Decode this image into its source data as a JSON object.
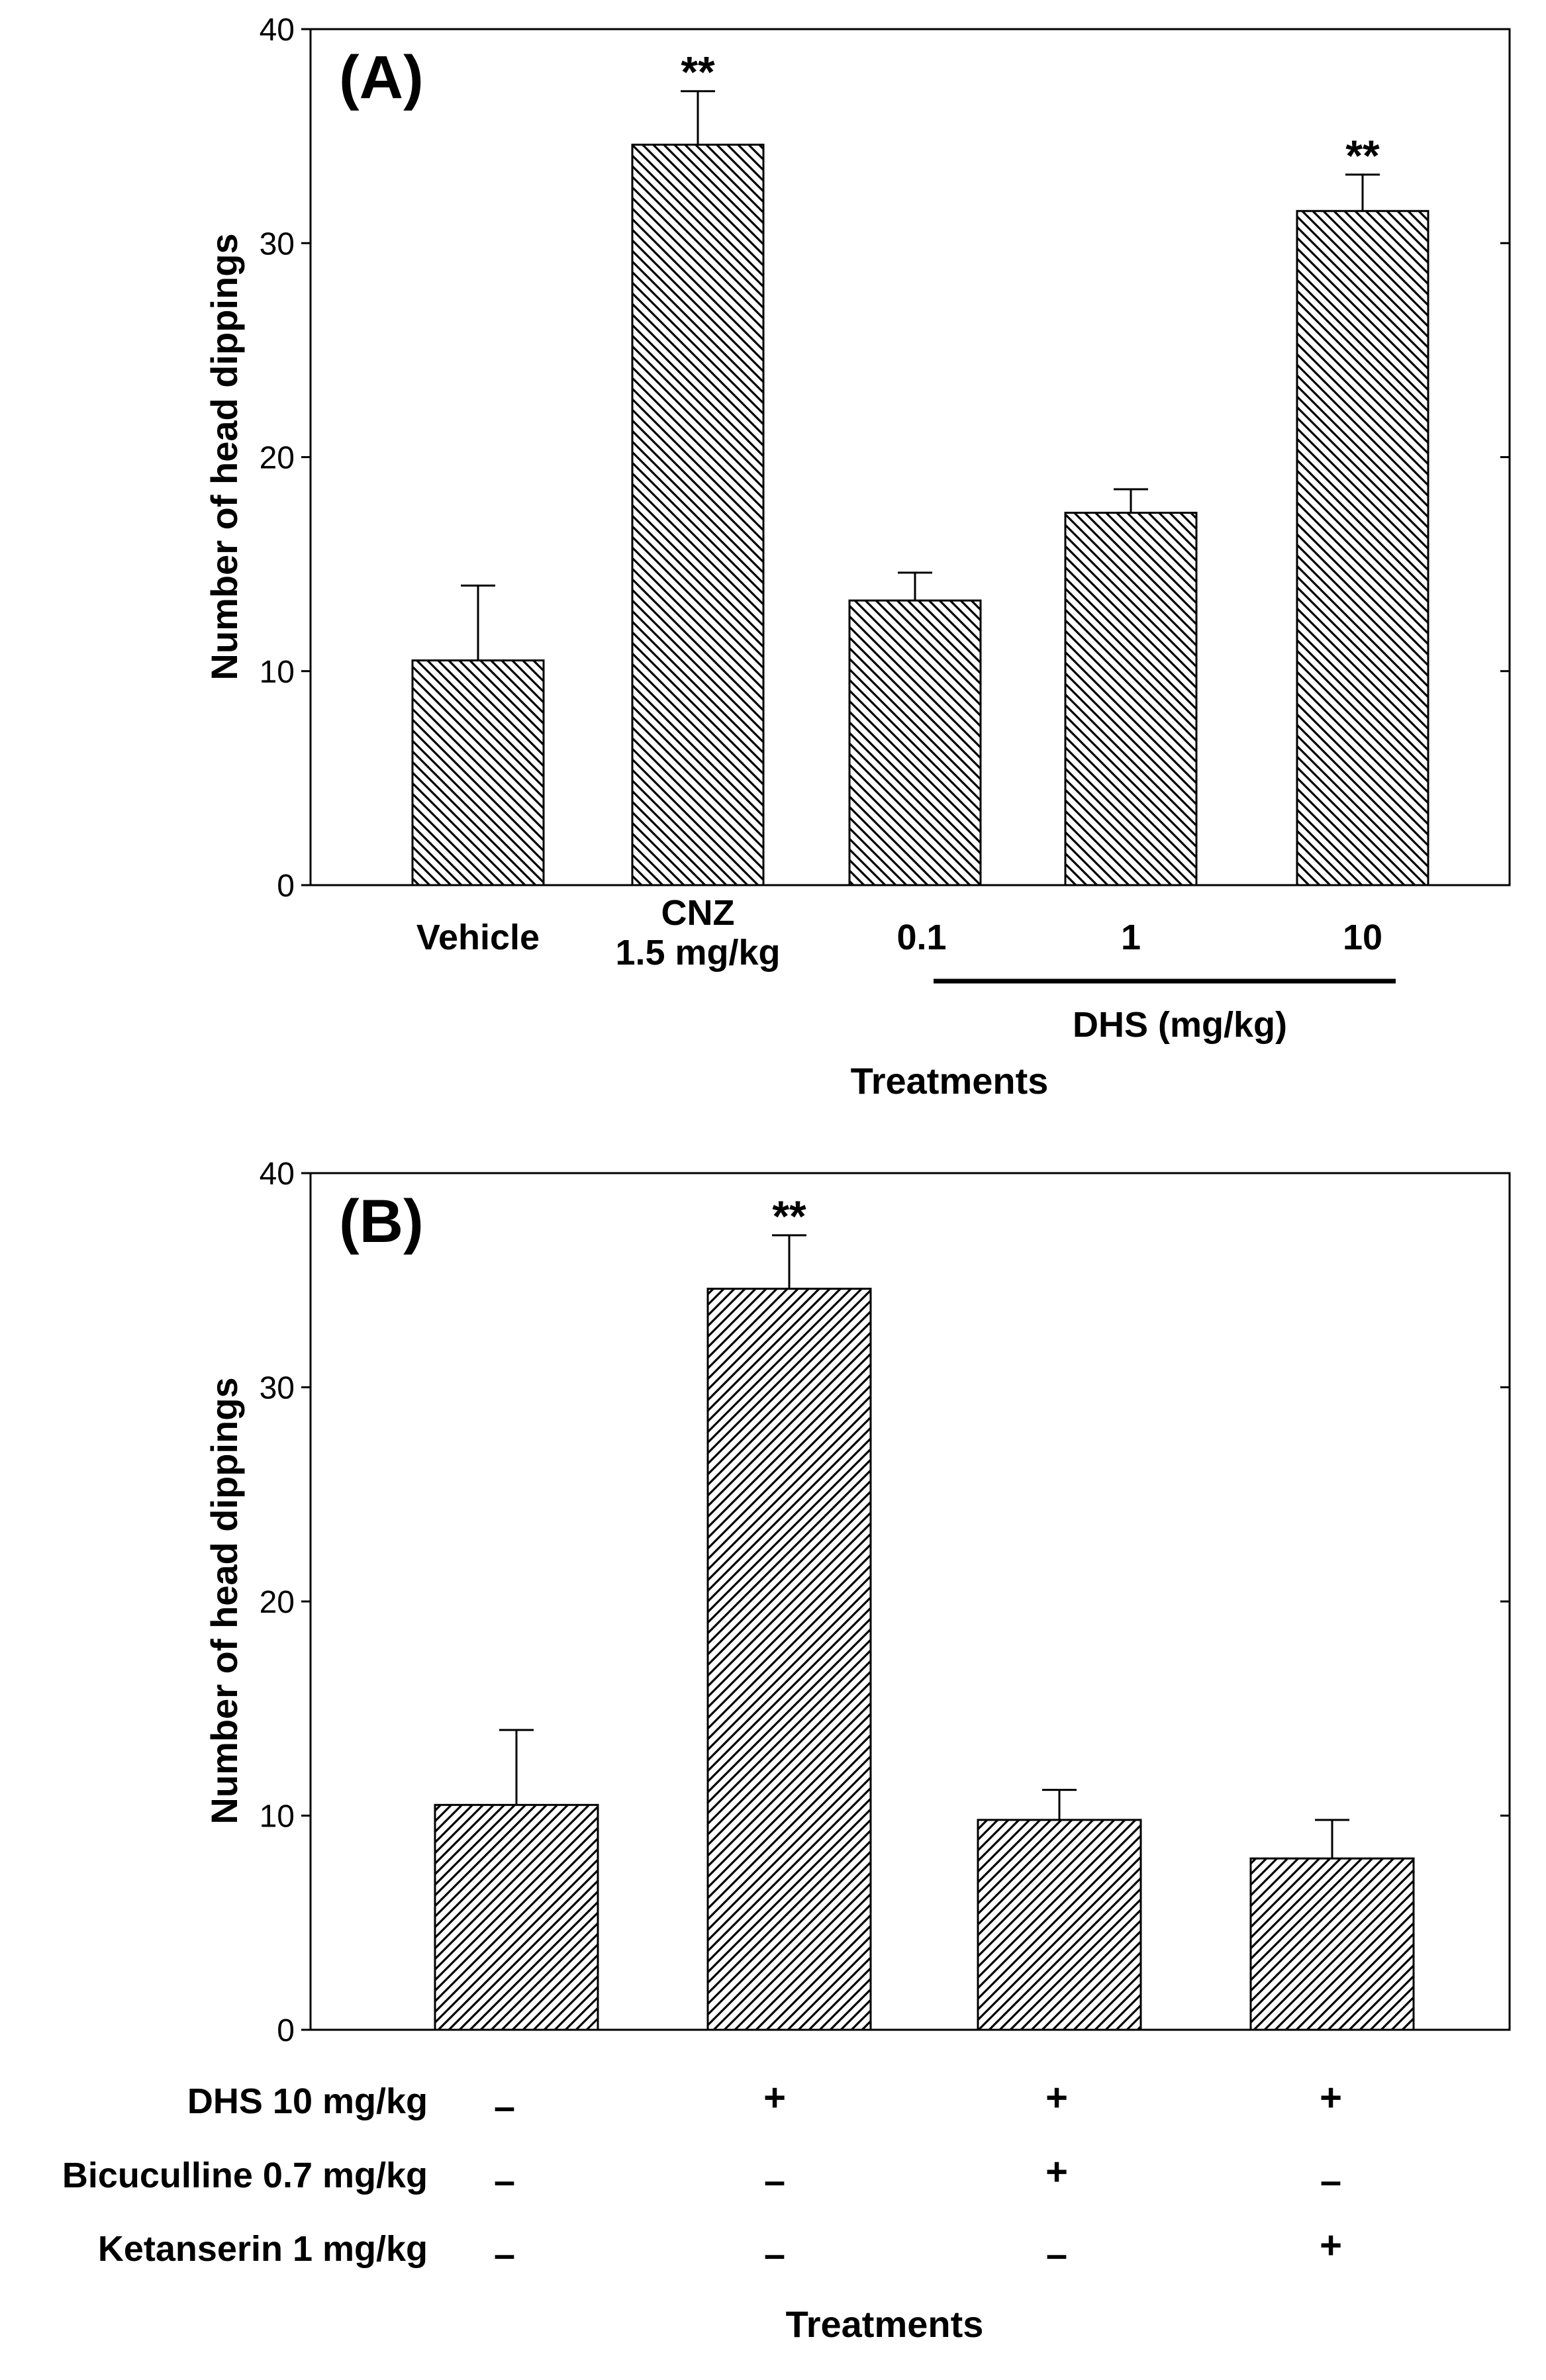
{
  "chart_data": [
    {
      "type": "bar",
      "panel_label": "(A)",
      "ylabel": "Number of head dippings",
      "xlabel": "Treatments",
      "ylim": [
        0,
        40
      ],
      "yticks": [
        0,
        10,
        20,
        30,
        40
      ],
      "hatch": "backslash",
      "categories": [
        {
          "lines": [
            "Vehicle"
          ]
        },
        {
          "lines": [
            "CNZ",
            "1.5 mg/kg"
          ]
        },
        {
          "lines": [
            "0.1"
          ]
        },
        {
          "lines": [
            "1"
          ]
        },
        {
          "lines": [
            "10"
          ]
        }
      ],
      "values": [
        10.5,
        34.6,
        13.3,
        17.4,
        31.5
      ],
      "errors": [
        3.5,
        2.5,
        1.3,
        1.1,
        1.7
      ],
      "significance": [
        "",
        "**",
        "",
        "",
        "**"
      ],
      "group_label": "DHS (mg/kg)",
      "group_span": [
        2,
        4
      ]
    },
    {
      "type": "bar",
      "panel_label": "(B)",
      "ylabel": "Number of head dippings",
      "xlabel": "Treatments",
      "ylim": [
        0,
        40
      ],
      "yticks": [
        0,
        10,
        20,
        30,
        40
      ],
      "hatch": "slash",
      "values": [
        10.5,
        34.6,
        9.8,
        8.0
      ],
      "errors": [
        3.5,
        2.5,
        1.4,
        1.8
      ],
      "significance": [
        "",
        "**",
        "",
        ""
      ],
      "treatment_rows": [
        {
          "label": "DHS 10 mg/kg",
          "signs": [
            "–",
            "+",
            "+",
            "+"
          ]
        },
        {
          "label": "Bicuculline 0.7 mg/kg",
          "signs": [
            "–",
            "–",
            "+",
            "–"
          ]
        },
        {
          "label": "Ketanserin 1 mg/kg",
          "signs": [
            "–",
            "–",
            "–",
            "+"
          ]
        }
      ]
    }
  ]
}
